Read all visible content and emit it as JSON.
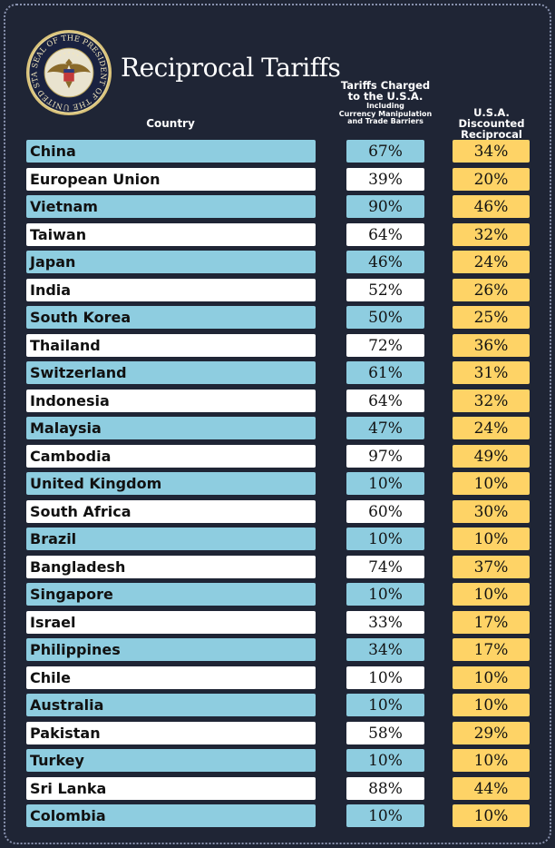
{
  "header": {
    "title": "Reciprocal Tariffs",
    "seal_text": "SEAL OF THE PRESIDENT OF THE UNITED STATES",
    "col_country": "Country",
    "col_charged_line1": "Tariffs Charged",
    "col_charged_line2": "to the U.S.A.",
    "col_charged_sub1": "Including",
    "col_charged_sub2": "Currency Manipulation",
    "col_charged_sub3": "and Trade Barriers",
    "col_disc_line1": "U.S.A. Discounted",
    "col_disc_line2": "Reciprocal Tariffs"
  },
  "colors": {
    "background": "#1f2535",
    "row_blue": "#8ecde0",
    "row_white": "#ffffff",
    "discount_yellow": "#fed366"
  },
  "chart_data": {
    "type": "table",
    "title": "Reciprocal Tariffs",
    "columns": [
      "Country",
      "Tariffs Charged to the U.S.A. Including Currency Manipulation and Trade Barriers",
      "U.S.A. Discounted Reciprocal Tariffs"
    ],
    "rows": [
      {
        "country": "China",
        "charged": "67%",
        "discounted": "34%"
      },
      {
        "country": "European Union",
        "charged": "39%",
        "discounted": "20%"
      },
      {
        "country": "Vietnam",
        "charged": "90%",
        "discounted": "46%"
      },
      {
        "country": "Taiwan",
        "charged": "64%",
        "discounted": "32%"
      },
      {
        "country": "Japan",
        "charged": "46%",
        "discounted": "24%"
      },
      {
        "country": "India",
        "charged": "52%",
        "discounted": "26%"
      },
      {
        "country": "South Korea",
        "charged": "50%",
        "discounted": "25%"
      },
      {
        "country": "Thailand",
        "charged": "72%",
        "discounted": "36%"
      },
      {
        "country": "Switzerland",
        "charged": "61%",
        "discounted": "31%"
      },
      {
        "country": "Indonesia",
        "charged": "64%",
        "discounted": "32%"
      },
      {
        "country": "Malaysia",
        "charged": "47%",
        "discounted": "24%"
      },
      {
        "country": "Cambodia",
        "charged": "97%",
        "discounted": "49%"
      },
      {
        "country": "United Kingdom",
        "charged": "10%",
        "discounted": "10%"
      },
      {
        "country": "South Africa",
        "charged": "60%",
        "discounted": "30%"
      },
      {
        "country": "Brazil",
        "charged": "10%",
        "discounted": "10%"
      },
      {
        "country": "Bangladesh",
        "charged": "74%",
        "discounted": "37%"
      },
      {
        "country": "Singapore",
        "charged": "10%",
        "discounted": "10%"
      },
      {
        "country": "Israel",
        "charged": "33%",
        "discounted": "17%"
      },
      {
        "country": "Philippines",
        "charged": "34%",
        "discounted": "17%"
      },
      {
        "country": "Chile",
        "charged": "10%",
        "discounted": "10%"
      },
      {
        "country": "Australia",
        "charged": "10%",
        "discounted": "10%"
      },
      {
        "country": "Pakistan",
        "charged": "58%",
        "discounted": "29%"
      },
      {
        "country": "Turkey",
        "charged": "10%",
        "discounted": "10%"
      },
      {
        "country": "Sri Lanka",
        "charged": "88%",
        "discounted": "44%"
      },
      {
        "country": "Colombia",
        "charged": "10%",
        "discounted": "10%"
      }
    ]
  }
}
